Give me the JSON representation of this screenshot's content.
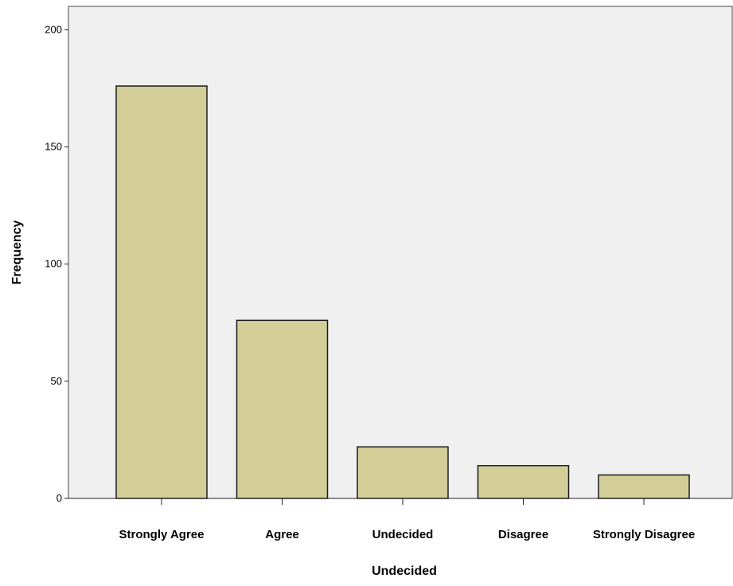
{
  "chart_data": {
    "type": "bar",
    "categories": [
      "Strongly Agree",
      "Agree",
      "Undecided",
      "Disagree",
      "Strongly Disagree"
    ],
    "values": [
      176,
      76,
      22,
      14,
      10
    ],
    "xlabel": "Undecided",
    "ylabel": "Frequency",
    "ylim": [
      0,
      210
    ],
    "yticks": [
      "0",
      "50",
      "100",
      "150",
      "200"
    ],
    "grid": false,
    "colors": {
      "bar_fill": "#d3ce97",
      "bar_stroke": "#1a1a1a",
      "plot_background": "#f0f0f0"
    }
  }
}
